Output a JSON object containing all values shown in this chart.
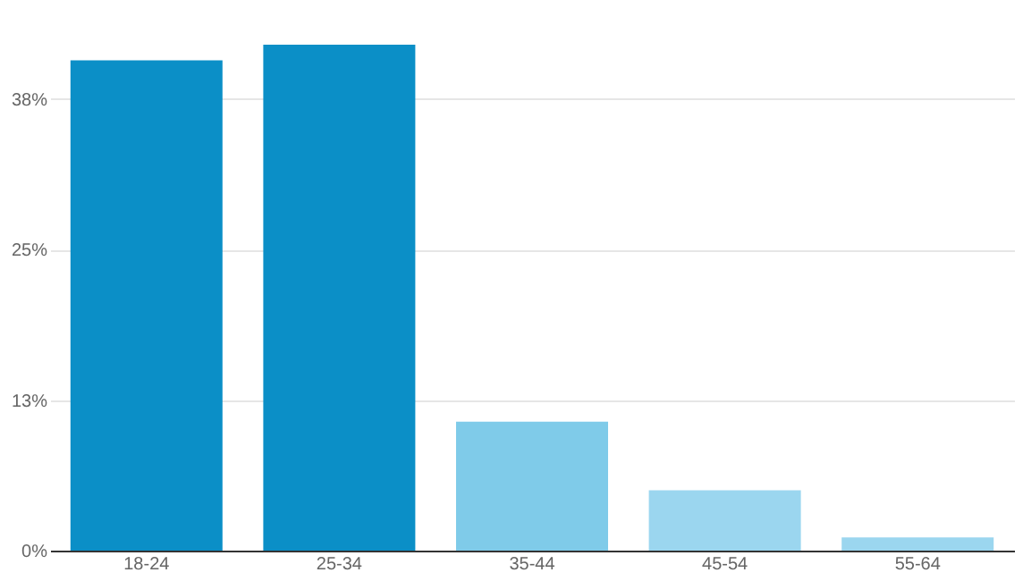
{
  "chart_data": {
    "type": "bar",
    "categories": [
      "18-24",
      "25-34",
      "35-44",
      "45-54",
      "55-64"
    ],
    "values": [
      40.7,
      42.0,
      10.7,
      5.0,
      1.1
    ],
    "ylim": [
      0,
      42.0
    ],
    "colors": [
      "#0b8fc7",
      "#0b8fc7",
      "#7fcbe9",
      "#9bd6ef",
      "#9bd6ef"
    ],
    "yticks": [
      {
        "value": 0,
        "label": "0%"
      },
      {
        "value": 12.5,
        "label": "13%"
      },
      {
        "value": 25,
        "label": "25%"
      },
      {
        "value": 37.5,
        "label": "38%"
      }
    ],
    "grid": "y"
  }
}
